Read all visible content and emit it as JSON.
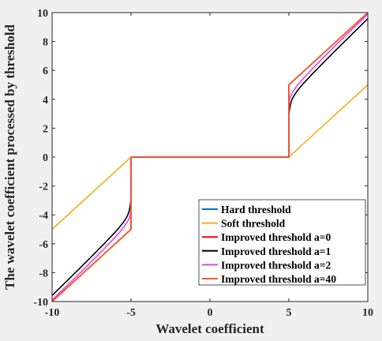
{
  "chart_data": {
    "type": "line",
    "xlabel": "Wavelet coefficient",
    "ylabel": "The wavelet coefficient processed by threshold",
    "xlim": [
      -10,
      10
    ],
    "ylim": [
      -10,
      10
    ],
    "xticks": [
      -10,
      -5,
      0,
      5,
      10
    ],
    "yticks": [
      -10,
      -8,
      -6,
      -4,
      -2,
      0,
      2,
      4,
      6,
      8,
      10
    ],
    "grid": false,
    "legend_position": "bottom-right",
    "threshold": 5,
    "series": [
      {
        "name": "Hard threshold",
        "color": "#0072BD",
        "points": [
          [
            -10,
            -10
          ],
          [
            -5,
            -5
          ],
          [
            -5,
            0
          ],
          [
            5,
            0
          ],
          [
            5,
            5
          ],
          [
            10,
            10
          ]
        ]
      },
      {
        "name": "Soft threshold",
        "color": "#EDB120",
        "points": [
          [
            -10,
            -5
          ],
          [
            -5,
            0
          ],
          [
            5,
            0
          ],
          [
            10,
            5
          ]
        ]
      },
      {
        "name": "Improved threshold a=0",
        "color": "#FF0000",
        "points": [
          [
            -10,
            -10
          ],
          [
            -7.5,
            -7.5
          ],
          [
            -5,
            -5
          ],
          [
            -5,
            0
          ],
          [
            5,
            0
          ],
          [
            5,
            5
          ],
          [
            7.5,
            7.5
          ],
          [
            10,
            10
          ]
        ]
      },
      {
        "name": "Improved threshold a=1",
        "color": "#000000",
        "points": [
          [
            -10,
            -9.58
          ],
          [
            -9,
            -8.51
          ],
          [
            -8,
            -7.43
          ],
          [
            -7,
            -6.33
          ],
          [
            -6.5,
            -5.77
          ],
          [
            -6,
            -5.19
          ],
          [
            -5.75,
            -4.88
          ],
          [
            -5.5,
            -4.54
          ],
          [
            -5.3,
            -4.21
          ],
          [
            -5.2,
            -3.99
          ],
          [
            -5.15,
            -3.84
          ],
          [
            -5.1,
            -3.65
          ],
          [
            -5.05,
            -3.37
          ],
          [
            -5.02,
            -3.07
          ],
          [
            -5.01,
            -2.95
          ],
          [
            -5.001,
            -2.1
          ],
          [
            -5,
            0
          ],
          [
            5,
            0
          ],
          [
            5.001,
            2.1
          ],
          [
            5.01,
            2.95
          ],
          [
            5.02,
            3.07
          ],
          [
            5.05,
            3.37
          ],
          [
            5.1,
            3.65
          ],
          [
            5.15,
            3.84
          ],
          [
            5.2,
            3.99
          ],
          [
            5.3,
            4.21
          ],
          [
            5.5,
            4.54
          ],
          [
            5.75,
            4.88
          ],
          [
            6,
            5.19
          ],
          [
            6.5,
            5.77
          ],
          [
            7,
            6.33
          ],
          [
            8,
            7.43
          ],
          [
            9,
            8.51
          ],
          [
            10,
            9.58
          ]
        ]
      },
      {
        "name": "Improved threshold a=2",
        "color": "#E040FB",
        "points": [
          [
            -10,
            -9.89
          ],
          [
            -9,
            -8.84
          ],
          [
            -8,
            -7.78
          ],
          [
            -7,
            -6.68
          ],
          [
            -6.5,
            -6.12
          ],
          [
            -6,
            -5.55
          ],
          [
            -5.5,
            -4.91
          ],
          [
            -5.2,
            -4.43
          ],
          [
            -5.1,
            -4.19
          ],
          [
            -5.05,
            -4.0
          ],
          [
            -5.02,
            -3.78
          ],
          [
            -5.001,
            -3.25
          ],
          [
            -5,
            0
          ],
          [
            5,
            0
          ],
          [
            5.001,
            3.25
          ],
          [
            5.02,
            3.78
          ],
          [
            5.05,
            4.0
          ],
          [
            5.1,
            4.19
          ],
          [
            5.2,
            4.43
          ],
          [
            5.5,
            4.91
          ],
          [
            6,
            5.55
          ],
          [
            6.5,
            6.12
          ],
          [
            7,
            6.68
          ],
          [
            8,
            7.78
          ],
          [
            9,
            8.84
          ],
          [
            10,
            9.89
          ]
        ]
      },
      {
        "name": "Improved threshold a=40",
        "color": "#FF5A1F",
        "points": [
          [
            -10,
            -10
          ],
          [
            -7.5,
            -7.5
          ],
          [
            -5,
            -5
          ],
          [
            -5,
            0
          ],
          [
            5,
            0
          ],
          [
            5,
            5
          ],
          [
            7.5,
            7.5
          ],
          [
            10,
            10
          ]
        ]
      }
    ]
  }
}
